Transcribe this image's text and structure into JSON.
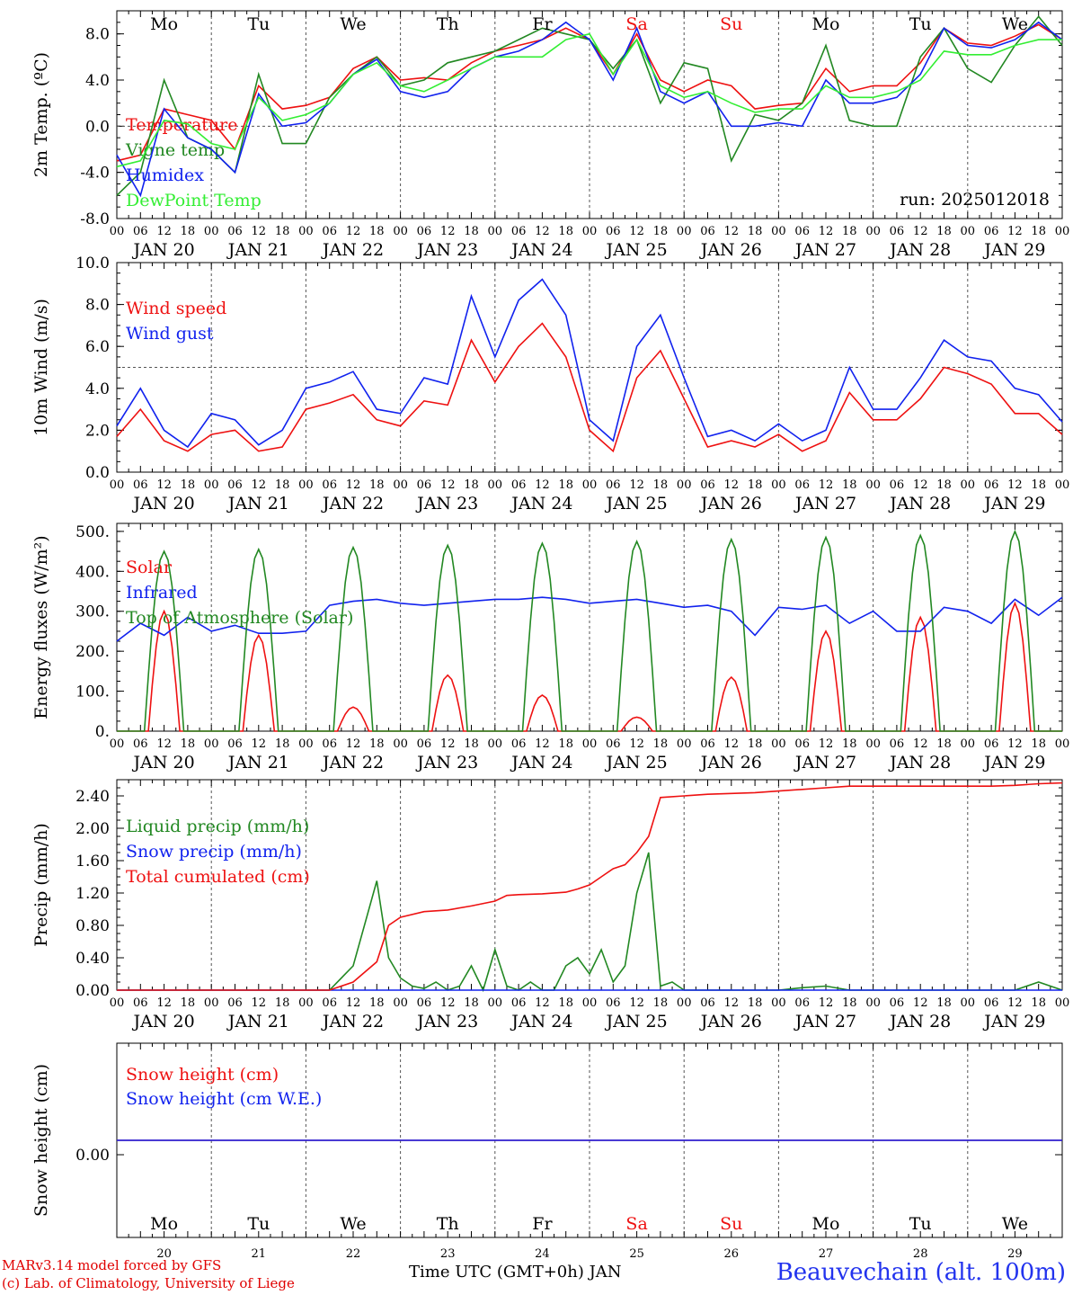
{
  "colors": {
    "red": "#ee1111",
    "green": "#228822",
    "blue": "#1122ee",
    "lightgreen": "#33ee33",
    "grid": "#555555"
  },
  "time_axis": {
    "hour_ticks": [
      "00",
      "06",
      "12",
      "18"
    ],
    "end_tick": "00",
    "dates": [
      "JAN 20",
      "JAN 21",
      "JAN 22",
      "JAN 23",
      "JAN 24",
      "JAN 25",
      "JAN 26",
      "JAN 27",
      "JAN 28",
      "JAN 29"
    ],
    "weekdays": [
      "Mo",
      "Tu",
      "We",
      "Th",
      "Fr",
      "Sa",
      "Su",
      "Mo",
      "Tu",
      "We"
    ],
    "weekend_flags": [
      false,
      false,
      false,
      false,
      false,
      true,
      true,
      false,
      false,
      false
    ],
    "day_numbers": [
      "20",
      "21",
      "22",
      "23",
      "24",
      "25",
      "26",
      "27",
      "28",
      "29"
    ]
  },
  "run_label": "run: 2025012018",
  "xlabel": "Time UTC (GMT+0h) JAN",
  "footer": {
    "line1": "MARv3.14 model forced by GFS",
    "line2": "(c) Lab. of Climatology, University of Liege"
  },
  "station": "Beauvechain (alt. 100m)",
  "chart_data": [
    {
      "type": "line",
      "ylabel": "2m Temp. (ºC)",
      "ylim": [
        -8,
        10
      ],
      "yticks": [
        "-8.0",
        "-4.0",
        "0.0",
        "4.0",
        "8.0"
      ],
      "ytick_values": [
        -8,
        -4,
        0,
        4,
        8
      ],
      "zero_line": 0,
      "series": [
        {
          "name": "Temperature",
          "color": "red",
          "x": [
            0,
            6,
            12,
            18,
            24,
            30,
            36,
            42,
            48,
            54,
            60,
            66,
            72,
            78,
            84,
            90,
            96,
            102,
            108,
            114,
            120,
            126,
            132,
            138,
            144,
            150,
            156,
            162,
            168,
            174,
            180,
            186,
            192,
            198,
            204,
            210,
            216,
            222,
            228,
            234,
            240
          ],
          "values": [
            -3.0,
            -2.5,
            1.5,
            1.0,
            0.5,
            -2.0,
            3.5,
            1.5,
            1.8,
            2.5,
            5.0,
            6.0,
            4.0,
            4.2,
            4.0,
            5.5,
            6.5,
            7.0,
            7.5,
            8.5,
            7.5,
            4.5,
            8.0,
            4.0,
            3.0,
            4.0,
            3.5,
            1.5,
            1.8,
            2.0,
            5.0,
            3.0,
            3.5,
            3.5,
            5.5,
            8.5,
            7.2,
            7.0,
            7.8,
            8.8,
            7.5
          ]
        },
        {
          "name": "Vigne temp",
          "color": "green",
          "x": [
            0,
            6,
            12,
            18,
            24,
            30,
            36,
            42,
            48,
            54,
            60,
            66,
            72,
            78,
            84,
            90,
            96,
            102,
            108,
            114,
            120,
            126,
            132,
            138,
            144,
            150,
            156,
            162,
            168,
            174,
            180,
            186,
            192,
            198,
            204,
            210,
            216,
            222,
            228,
            234,
            240
          ],
          "values": [
            -6.0,
            -4.0,
            4.0,
            -1.0,
            -2.0,
            -4.0,
            4.5,
            -1.5,
            -1.5,
            2.5,
            4.5,
            6.0,
            3.5,
            4.0,
            5.5,
            6.0,
            6.5,
            7.5,
            8.5,
            8.0,
            7.5,
            5.0,
            7.5,
            2.0,
            5.5,
            5.0,
            -3.0,
            1.0,
            0.5,
            2.0,
            7.0,
            0.5,
            0.0,
            0.0,
            6.0,
            8.5,
            5.0,
            3.8,
            7.0,
            9.5,
            7.0
          ]
        },
        {
          "name": "Humidex",
          "color": "blue",
          "x": [
            0,
            6,
            12,
            18,
            24,
            30,
            36,
            42,
            48,
            54,
            60,
            66,
            72,
            78,
            84,
            90,
            96,
            102,
            108,
            114,
            120,
            126,
            132,
            138,
            144,
            150,
            156,
            162,
            168,
            174,
            180,
            186,
            192,
            198,
            204,
            210,
            216,
            222,
            228,
            234,
            240
          ],
          "values": [
            -2.5,
            -6.0,
            1.5,
            -1.0,
            -2.0,
            -4.0,
            2.8,
            0.0,
            0.3,
            2.0,
            4.5,
            5.8,
            3.0,
            2.5,
            3.0,
            5.0,
            6.0,
            6.5,
            7.5,
            9.0,
            7.5,
            4.0,
            8.5,
            3.0,
            2.0,
            3.0,
            0.0,
            0.0,
            0.3,
            0.0,
            4.0,
            2.0,
            2.0,
            2.5,
            4.5,
            8.5,
            7.0,
            6.8,
            7.5,
            9.0,
            7.5
          ]
        },
        {
          "name": "DewPoint Temp",
          "color": "lightgreen",
          "x": [
            0,
            6,
            12,
            18,
            24,
            30,
            36,
            42,
            48,
            54,
            60,
            66,
            72,
            78,
            84,
            90,
            96,
            102,
            108,
            114,
            120,
            126,
            132,
            138,
            144,
            150,
            156,
            162,
            168,
            174,
            180,
            186,
            192,
            198,
            204,
            210,
            216,
            222,
            228,
            234,
            240
          ],
          "values": [
            -3.5,
            -3.0,
            0.5,
            0.2,
            -1.5,
            -2.0,
            2.5,
            0.5,
            1.0,
            2.0,
            4.5,
            5.5,
            3.5,
            3.0,
            4.0,
            5.0,
            6.0,
            6.0,
            6.0,
            7.5,
            8.0,
            4.5,
            7.5,
            3.5,
            2.5,
            3.0,
            2.0,
            1.2,
            1.5,
            1.5,
            3.5,
            2.5,
            2.5,
            3.0,
            4.0,
            6.5,
            6.2,
            6.2,
            7.0,
            7.5,
            7.5
          ]
        }
      ]
    },
    {
      "type": "line",
      "ylabel": "10m Wind (m/s)",
      "ylim": [
        0,
        10
      ],
      "yticks": [
        "0.0",
        "2.0",
        "4.0",
        "6.0",
        "8.0",
        "10.0"
      ],
      "ytick_values": [
        0,
        2,
        4,
        6,
        8,
        10
      ],
      "ref_line": 5,
      "series": [
        {
          "name": "Wind speed",
          "color": "red",
          "x": [
            0,
            6,
            12,
            18,
            24,
            30,
            36,
            42,
            48,
            54,
            60,
            66,
            72,
            78,
            84,
            90,
            96,
            102,
            108,
            114,
            120,
            126,
            132,
            138,
            144,
            150,
            156,
            162,
            168,
            174,
            180,
            186,
            192,
            198,
            204,
            210,
            216,
            222,
            228,
            234,
            240
          ],
          "values": [
            1.7,
            3.0,
            1.5,
            1.0,
            1.8,
            2.0,
            1.0,
            1.2,
            3.0,
            3.3,
            3.7,
            2.5,
            2.2,
            3.4,
            3.2,
            6.3,
            4.3,
            6.0,
            7.1,
            5.5,
            2.0,
            1.0,
            4.5,
            5.8,
            3.5,
            1.2,
            1.5,
            1.2,
            1.8,
            1.0,
            1.5,
            3.8,
            2.5,
            2.5,
            3.5,
            5.0,
            4.7,
            4.2,
            2.8,
            2.8,
            1.8
          ]
        },
        {
          "name": "Wind gust",
          "color": "blue",
          "x": [
            0,
            6,
            12,
            18,
            24,
            30,
            36,
            42,
            48,
            54,
            60,
            66,
            72,
            78,
            84,
            90,
            96,
            102,
            108,
            114,
            120,
            126,
            132,
            138,
            144,
            150,
            156,
            162,
            168,
            174,
            180,
            186,
            192,
            198,
            204,
            210,
            216,
            222,
            228,
            234,
            240
          ],
          "values": [
            2.2,
            4.0,
            2.0,
            1.2,
            2.8,
            2.5,
            1.3,
            2.0,
            4.0,
            4.3,
            4.8,
            3.0,
            2.8,
            4.5,
            4.2,
            8.4,
            5.5,
            8.2,
            9.2,
            7.5,
            2.5,
            1.5,
            6.0,
            7.5,
            4.5,
            1.7,
            2.0,
            1.5,
            2.3,
            1.5,
            2.0,
            5.0,
            3.0,
            3.0,
            4.5,
            6.3,
            5.5,
            5.3,
            4.0,
            3.7,
            2.4
          ]
        }
      ]
    },
    {
      "type": "line",
      "ylabel": "Energy fluxes (W/m²)",
      "ylim": [
        0,
        500
      ],
      "yticks": [
        "0.",
        "100.",
        "200.",
        "300.",
        "400.",
        "500."
      ],
      "ytick_values": [
        0,
        100,
        200,
        300,
        400,
        500
      ],
      "series": [
        {
          "name": "Solar",
          "color": "red",
          "peaks": [
            300,
            240,
            60,
            140,
            90,
            35,
            135,
            250,
            285,
            320
          ]
        },
        {
          "name": "Infrared",
          "color": "blue",
          "x": [
            0,
            6,
            12,
            18,
            24,
            30,
            36,
            42,
            48,
            54,
            60,
            66,
            72,
            78,
            84,
            90,
            96,
            102,
            108,
            114,
            120,
            126,
            132,
            138,
            144,
            150,
            156,
            162,
            168,
            174,
            180,
            186,
            192,
            198,
            204,
            210,
            216,
            222,
            228,
            234,
            240
          ],
          "values": [
            225,
            270,
            240,
            285,
            250,
            265,
            245,
            245,
            250,
            315,
            325,
            330,
            320,
            315,
            320,
            325,
            330,
            330,
            335,
            330,
            320,
            325,
            330,
            320,
            310,
            315,
            300,
            240,
            310,
            305,
            315,
            270,
            300,
            250,
            250,
            310,
            300,
            270,
            330,
            290,
            335
          ]
        },
        {
          "name": "Top of Atmosphere (Solar)",
          "color": "green",
          "peaks": [
            450,
            455,
            460,
            465,
            470,
            475,
            480,
            485,
            490,
            500
          ]
        }
      ]
    },
    {
      "type": "line",
      "ylabel": "Precip (mm/h)",
      "ylim": [
        0,
        2.6
      ],
      "yticks": [
        "0.00",
        "0.40",
        "0.80",
        "1.20",
        "1.60",
        "2.00",
        "2.40"
      ],
      "ytick_values": [
        0,
        0.4,
        0.8,
        1.2,
        1.6,
        2.0,
        2.4
      ],
      "series": [
        {
          "name": "Liquid precip (mm/h)",
          "color": "green",
          "x": [
            0,
            6,
            12,
            18,
            24,
            30,
            36,
            42,
            48,
            54,
            60,
            66,
            69,
            72,
            75,
            78,
            81,
            84,
            87,
            90,
            93,
            96,
            99,
            102,
            105,
            108,
            111,
            114,
            117,
            120,
            123,
            126,
            129,
            132,
            135,
            138,
            141,
            144,
            150,
            156,
            162,
            168,
            174,
            180,
            186,
            192,
            198,
            204,
            210,
            216,
            222,
            228,
            234,
            240
          ],
          "values": [
            0,
            0,
            0,
            0,
            0,
            0,
            0,
            0,
            0,
            0,
            0.3,
            1.35,
            0.4,
            0.15,
            0.05,
            0.02,
            0.1,
            0.0,
            0.05,
            0.3,
            0.0,
            0.5,
            0.05,
            0.0,
            0.1,
            0.0,
            0.0,
            0.3,
            0.4,
            0.2,
            0.5,
            0.1,
            0.3,
            1.2,
            1.7,
            0.05,
            0.1,
            0.0,
            0,
            0,
            0,
            0,
            0.03,
            0.05,
            0,
            0,
            0,
            0,
            0,
            0,
            0,
            0,
            0.1,
            0
          ]
        },
        {
          "name": "Snow precip (mm/h)",
          "color": "blue",
          "x": [
            0,
            240
          ],
          "values": [
            0,
            0
          ]
        },
        {
          "name": "Total cumulated (cm)",
          "color": "red",
          "x": [
            0,
            54,
            60,
            66,
            69,
            72,
            78,
            84,
            90,
            96,
            99,
            102,
            108,
            114,
            117,
            120,
            123,
            126,
            129,
            132,
            135,
            138,
            144,
            150,
            156,
            162,
            168,
            174,
            180,
            186,
            192,
            198,
            204,
            210,
            216,
            222,
            228,
            234,
            240
          ],
          "values": [
            0,
            0,
            0.1,
            0.35,
            0.8,
            0.9,
            0.97,
            0.99,
            1.04,
            1.1,
            1.17,
            1.18,
            1.19,
            1.21,
            1.25,
            1.3,
            1.4,
            1.5,
            1.55,
            1.7,
            1.9,
            2.38,
            2.4,
            2.42,
            2.43,
            2.44,
            2.46,
            2.48,
            2.5,
            2.52,
            2.52,
            2.52,
            2.52,
            2.52,
            2.52,
            2.52,
            2.53,
            2.55,
            2.56
          ]
        }
      ]
    },
    {
      "type": "line",
      "ylabel": "Snow height (cm)",
      "yticks": [
        "0.00"
      ],
      "ytick_values": [
        0
      ],
      "series": [
        {
          "name": "Snow height (cm)",
          "color": "red",
          "x": [
            0,
            240
          ],
          "values": [
            0,
            0
          ]
        },
        {
          "name": "Snow height (cm W.E.)",
          "color": "blue",
          "x": [
            0,
            240
          ],
          "values": [
            0,
            0
          ]
        }
      ]
    }
  ]
}
